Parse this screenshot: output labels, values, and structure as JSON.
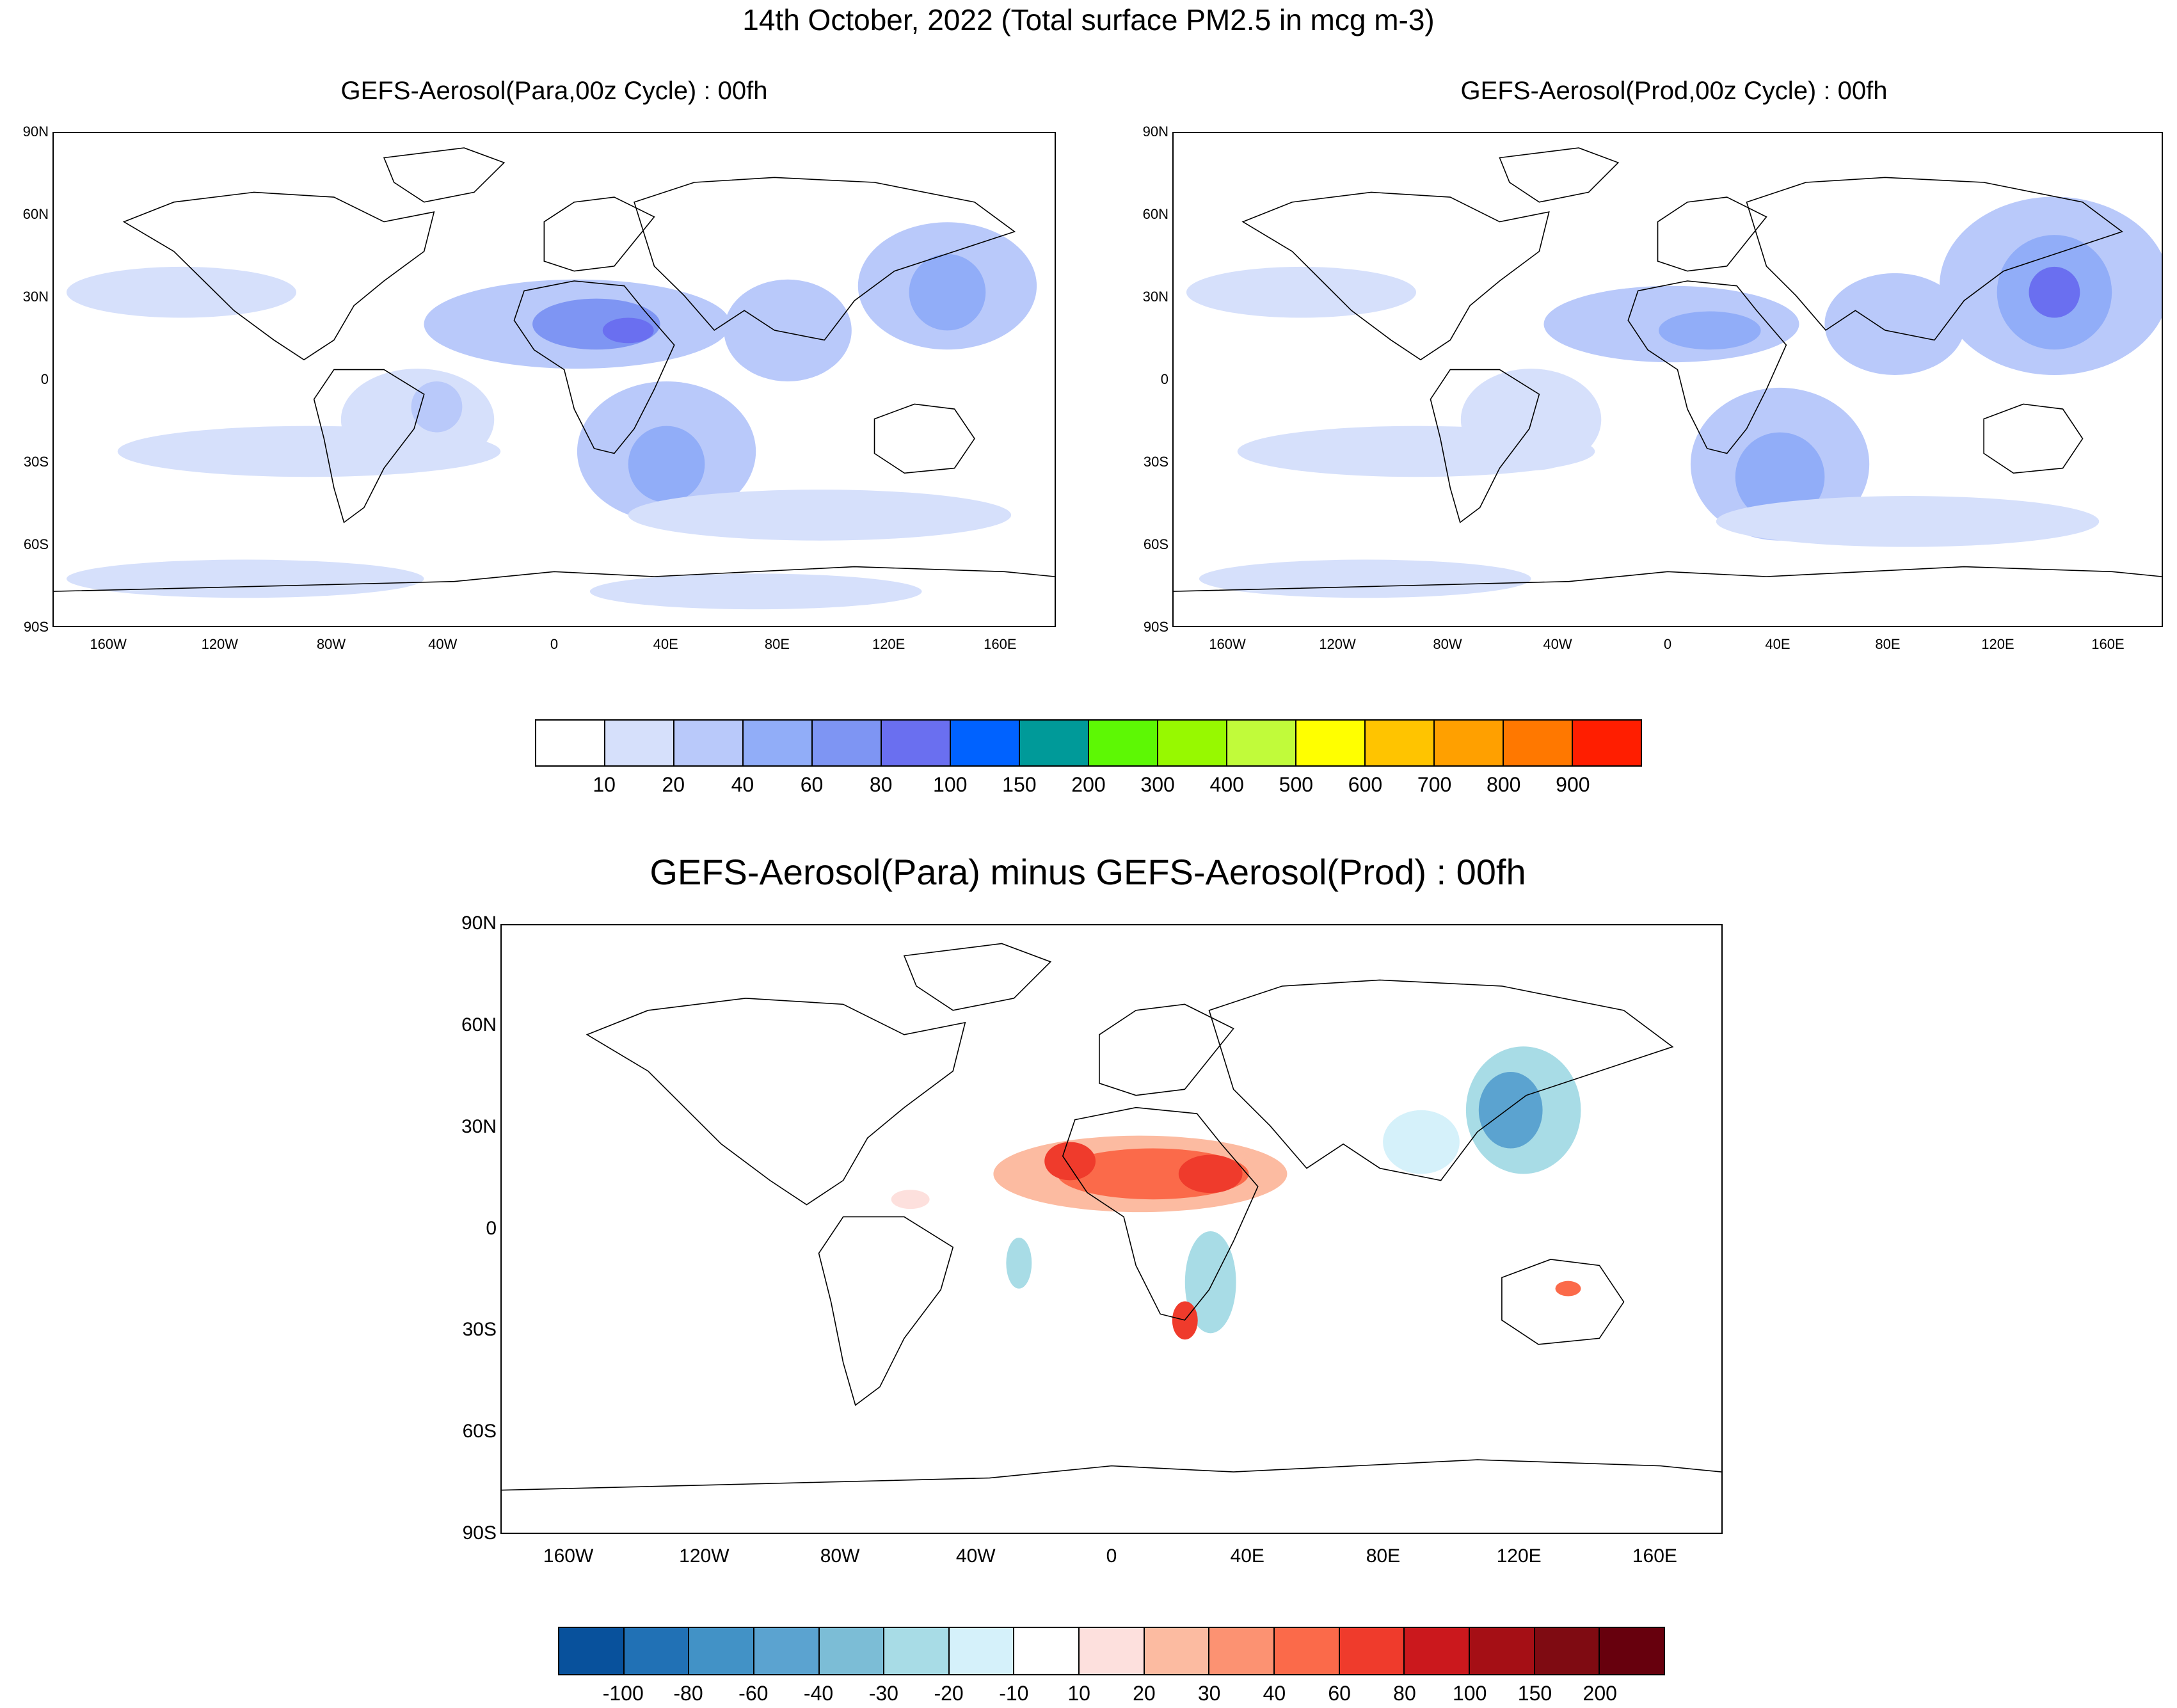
{
  "title": "14th October, 2022 (Total surface PM2.5 in mcg m-3)",
  "maps": {
    "para": {
      "title": "GEFS-Aerosol(Para,00z Cycle) : 00fh"
    },
    "prod": {
      "title": "GEFS-Aerosol(Prod,00z Cycle) : 00fh"
    },
    "diff": {
      "title": "GEFS-Aerosol(Para) minus GEFS-Aerosol(Prod) : 00fh"
    }
  },
  "axes": {
    "lat_labels": [
      "90N",
      "60N",
      "30N",
      "0",
      "30S",
      "60S",
      "90S"
    ],
    "lon_labels": [
      "160W",
      "120W",
      "80W",
      "40W",
      "0",
      "40E",
      "80E",
      "120E",
      "160E"
    ]
  },
  "colorbars": {
    "pm25": {
      "labels": [
        "10",
        "20",
        "40",
        "60",
        "80",
        "100",
        "150",
        "200",
        "300",
        "400",
        "500",
        "600",
        "700",
        "800",
        "900"
      ],
      "colors": [
        "#ffffff",
        "#d6e0fb",
        "#b9c9fa",
        "#91adf8",
        "#7e95f3",
        "#6a6ff0",
        "#0062ff",
        "#009a99",
        "#5df804",
        "#97f900",
        "#c1fb3a",
        "#ffff00",
        "#ffc400",
        "#ffa000",
        "#ff7800",
        "#ff1e00"
      ]
    },
    "diff": {
      "labels": [
        "-100",
        "-80",
        "-60",
        "-40",
        "-30",
        "-20",
        "-10",
        "10",
        "20",
        "30",
        "40",
        "60",
        "80",
        "100",
        "150",
        "200"
      ],
      "colors": [
        "#08519c",
        "#2171b5",
        "#4292c6",
        "#5ba3d0",
        "#7cbdd6",
        "#a8dce6",
        "#d5f1fa",
        "#ffffff",
        "#fde0dd",
        "#fcbba1",
        "#fc9272",
        "#fb6a4a",
        "#ef3b2c",
        "#cb181d",
        "#a50f15",
        "#7f0b12",
        "#67000d"
      ]
    }
  }
}
